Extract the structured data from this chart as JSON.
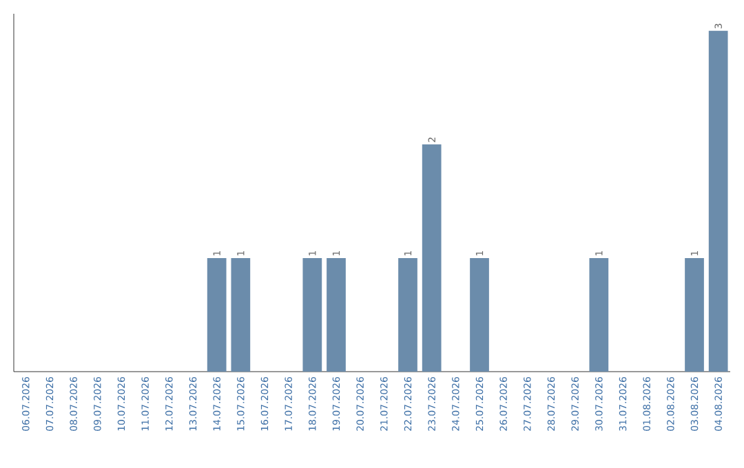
{
  "chart_data": {
    "type": "bar",
    "color": "#6b8cab",
    "categories": [
      "06.07.2026",
      "07.07.2026",
      "08.07.2026",
      "09.07.2026",
      "10.07.2026",
      "11.07.2026",
      "12.07.2026",
      "13.07.2026",
      "14.07.2026",
      "15.07.2026",
      "16.07.2026",
      "17.07.2026",
      "18.07.2026",
      "19.07.2026",
      "20.07.2026",
      "21.07.2026",
      "22.07.2026",
      "23.07.2026",
      "24.07.2026",
      "25.07.2026",
      "26.07.2026",
      "27.07.2026",
      "28.07.2026",
      "29.07.2026",
      "30.07.2026",
      "31.07.2026",
      "01.08.2026",
      "02.08.2026",
      "03.08.2026",
      "04.08.2026"
    ],
    "values": [
      0,
      0,
      0,
      0,
      0,
      0,
      0,
      0,
      1,
      1,
      0,
      0,
      1,
      1,
      0,
      0,
      1,
      2,
      0,
      1,
      0,
      0,
      0,
      0,
      1,
      0,
      0,
      0,
      1,
      3
    ],
    "value_labels": [
      null,
      null,
      null,
      null,
      null,
      null,
      null,
      null,
      "1",
      "1",
      null,
      null,
      "1",
      "1",
      null,
      null,
      "1",
      "2",
      null,
      "1",
      null,
      null,
      null,
      null,
      "1",
      null,
      null,
      null,
      "1",
      "3"
    ],
    "data_labels": false
  }
}
